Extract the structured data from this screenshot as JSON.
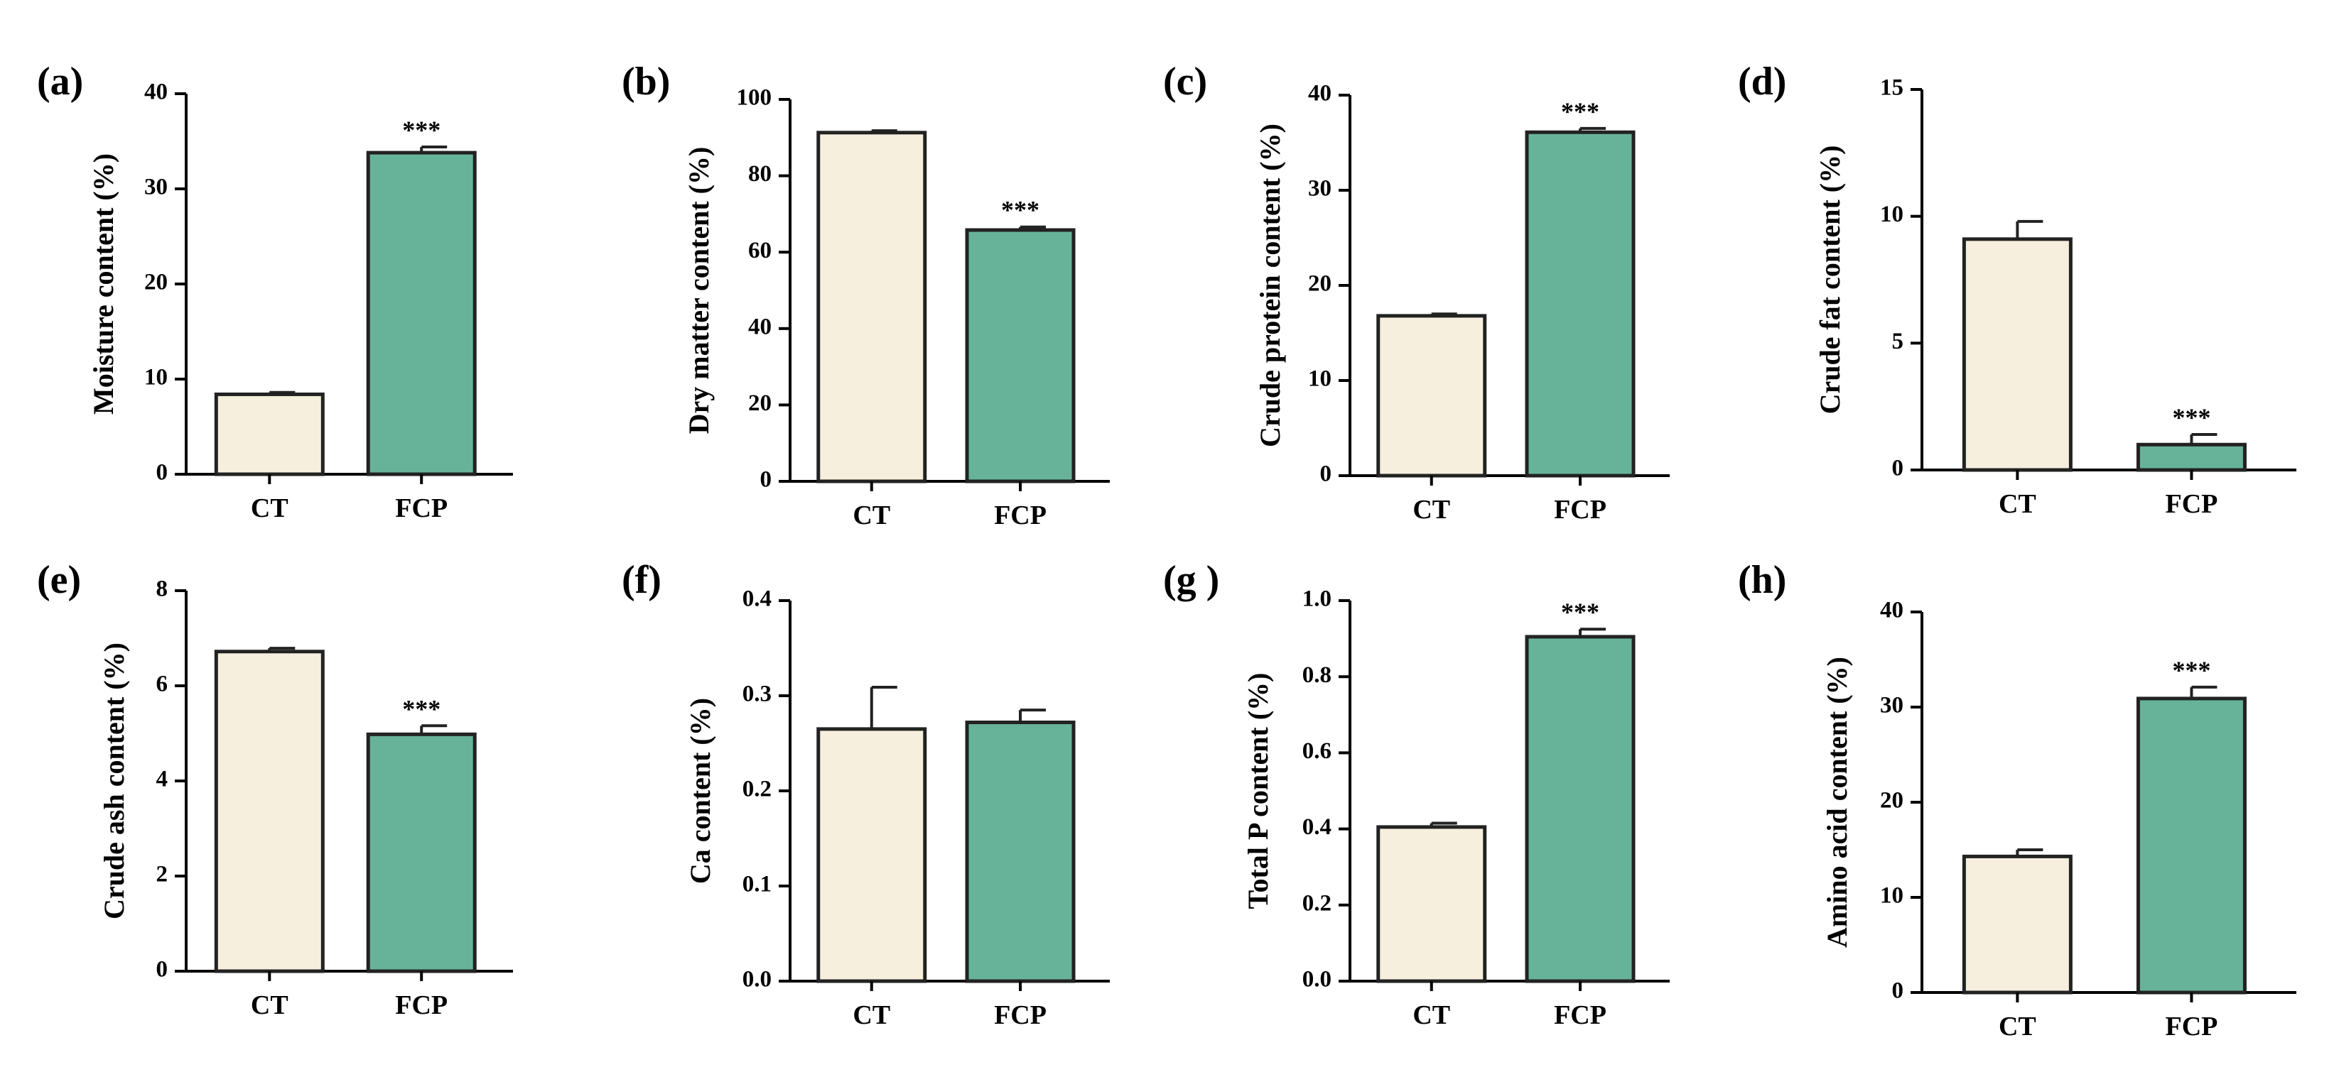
{
  "colors": {
    "ct": "#f6efdd",
    "fcp": "#67b39a",
    "stroke": "#222222"
  },
  "chart_data": [
    {
      "id": "a",
      "type": "bar",
      "panel_label": "(a)",
      "ylabel": "Moisture content (%)",
      "categories": [
        "CT",
        "FCP"
      ],
      "values": [
        8.4,
        33.8
      ],
      "errors": [
        0.2,
        0.6
      ],
      "significance": [
        "",
        "***"
      ],
      "ylim": [
        0,
        40
      ],
      "yticks": [
        "0",
        "10",
        "20",
        "30",
        "40"
      ]
    },
    {
      "id": "b",
      "type": "bar",
      "panel_label": "(b)",
      "ylabel": "Dry matter content (%)",
      "categories": [
        "CT",
        "FCP"
      ],
      "values": [
        91.3,
        65.8
      ],
      "errors": [
        0.5,
        0.8
      ],
      "significance": [
        "",
        "***"
      ],
      "ylim": [
        0,
        100
      ],
      "yticks": [
        "0",
        "20",
        "40",
        "60",
        "80",
        "100"
      ]
    },
    {
      "id": "c",
      "type": "bar",
      "panel_label": "(c)",
      "ylabel": "Crude protein content (%)",
      "categories": [
        "CT",
        "FCP"
      ],
      "values": [
        16.8,
        36.1
      ],
      "errors": [
        0.2,
        0.4
      ],
      "significance": [
        "",
        "***"
      ],
      "ylim": [
        0,
        40
      ],
      "yticks": [
        "0",
        "10",
        "20",
        "30",
        "40"
      ]
    },
    {
      "id": "d",
      "type": "bar",
      "panel_label": "(d)",
      "ylabel": "Crude fat content (%)",
      "categories": [
        "CT",
        "FCP"
      ],
      "values": [
        9.1,
        1.0
      ],
      "errors": [
        0.7,
        0.4
      ],
      "significance": [
        "",
        "***"
      ],
      "ylim": [
        0,
        15
      ],
      "yticks": [
        "0",
        "5",
        "10",
        "15"
      ]
    },
    {
      "id": "e",
      "type": "bar",
      "panel_label": "(e)",
      "ylabel": "Crude ash content (%)",
      "categories": [
        "CT",
        "FCP"
      ],
      "values": [
        6.72,
        4.98
      ],
      "errors": [
        0.07,
        0.18
      ],
      "significance": [
        "",
        "***"
      ],
      "ylim": [
        0,
        8
      ],
      "yticks": [
        "0",
        "2",
        "4",
        "6",
        "8"
      ]
    },
    {
      "id": "f",
      "type": "bar",
      "panel_label": "(f)",
      "ylabel": "Ca content (%)",
      "categories": [
        "CT",
        "FCP"
      ],
      "values": [
        0.265,
        0.272
      ],
      "errors": [
        0.044,
        0.013
      ],
      "significance": [
        "",
        ""
      ],
      "ylim": [
        0,
        0.4
      ],
      "yticks": [
        "0.0",
        "0.1",
        "0.2",
        "0.3",
        "0.4"
      ]
    },
    {
      "id": "g",
      "type": "bar",
      "panel_label": "(g )",
      "ylabel": "Total P content (%)",
      "categories": [
        "CT",
        "FCP"
      ],
      "values": [
        0.405,
        0.905
      ],
      "errors": [
        0.01,
        0.02
      ],
      "significance": [
        "",
        "***"
      ],
      "ylim": [
        0,
        1.0
      ],
      "yticks": [
        "0.0",
        "0.2",
        "0.4",
        "0.6",
        "0.8",
        "1.0"
      ]
    },
    {
      "id": "h",
      "type": "bar",
      "panel_label": "(h)",
      "ylabel": "Amino acid content (%)",
      "categories": [
        "CT",
        "FCP"
      ],
      "values": [
        14.3,
        30.9
      ],
      "errors": [
        0.7,
        1.2
      ],
      "significance": [
        "",
        "***"
      ],
      "ylim": [
        0,
        40
      ],
      "yticks": [
        "0",
        "10",
        "20",
        "30",
        "40"
      ]
    }
  ]
}
